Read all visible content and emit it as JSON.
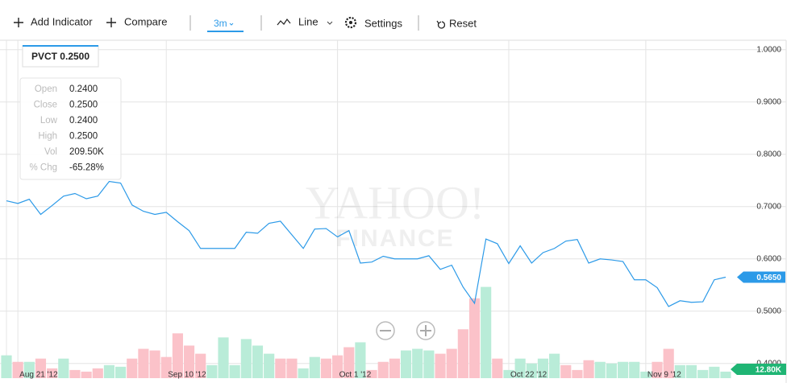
{
  "toolbar": {
    "add_indicator": "Add Indicator",
    "compare": "Compare",
    "range": "3m",
    "chart_style": "Line",
    "settings": "Settings",
    "reset": "Reset"
  },
  "watermark": [
    "YAHOO!",
    "FINANCE"
  ],
  "quote_box": {
    "symbol_price": "PVCT 0.2500",
    "rows": [
      [
        "Open",
        "0.2400"
      ],
      [
        "Close",
        "0.2500"
      ],
      [
        "Low",
        "0.2400"
      ],
      [
        "High",
        "0.2500"
      ],
      [
        "Vol",
        "209.50K"
      ],
      [
        "% Chg",
        "-65.28%"
      ]
    ]
  },
  "chart_data": {
    "type": "line",
    "categories": [
      null,
      "Aug 21 '12",
      null,
      null,
      null,
      null,
      null,
      null,
      null,
      null,
      null,
      null,
      null,
      null,
      "Sep 10 '12",
      null,
      null,
      null,
      null,
      null,
      null,
      null,
      null,
      null,
      null,
      null,
      null,
      null,
      null,
      "Oct 1 '12",
      null,
      null,
      null,
      null,
      null,
      null,
      null,
      null,
      null,
      null,
      null,
      null,
      null,
      null,
      "Oct 22 '12",
      null,
      null,
      null,
      null,
      null,
      null,
      null,
      null,
      null,
      null,
      null,
      "Nov 9 '12",
      null,
      null,
      null,
      null,
      null,
      null,
      null
    ],
    "series": [
      {
        "name": "PVCT",
        "color": "#2c9ae8",
        "values": [
          0.711,
          0.706,
          0.714,
          0.685,
          0.702,
          0.72,
          0.725,
          0.715,
          0.72,
          0.748,
          0.745,
          0.703,
          0.691,
          0.685,
          0.689,
          0.671,
          0.654,
          0.62,
          0.62,
          0.62,
          0.62,
          0.651,
          0.649,
          0.668,
          0.672,
          0.646,
          0.62,
          0.657,
          0.658,
          0.642,
          0.654,
          0.592,
          0.594,
          0.605,
          0.6,
          0.6,
          0.6,
          0.606,
          0.58,
          0.588,
          0.546,
          0.515,
          0.638,
          0.629,
          0.591,
          0.625,
          0.592,
          0.612,
          0.62,
          0.634,
          0.637,
          0.592,
          0.6,
          0.598,
          0.595,
          0.56,
          0.56,
          0.545,
          0.509,
          0.52,
          0.517,
          0.518,
          0.56,
          0.565
        ]
      }
    ],
    "volume": {
      "values": [
        44.8,
        32,
        32,
        38.4,
        19.2,
        38.4,
        16,
        12.8,
        19.2,
        25.6,
        22.4,
        38.4,
        57.6,
        54.4,
        41.6,
        88,
        64,
        48,
        25.6,
        80,
        25.6,
        76.8,
        64,
        48,
        38.4,
        38.4,
        19.2,
        41.6,
        38.4,
        44.8,
        60.8,
        70.4,
        16,
        32,
        38.4,
        54.4,
        57.6,
        54.4,
        48,
        57.6,
        96,
        156.8,
        179.2,
        38.4,
        16,
        38.4,
        28.8,
        38.4,
        48,
        25.6,
        16,
        35.2,
        32,
        28.8,
        32,
        32,
        12.8,
        32,
        57.6,
        25.6,
        25.6,
        16,
        22.4,
        12.8
      ],
      "colors": [
        "#b9ecd8",
        "#fbc2c9",
        "#b9ecd8",
        "#fbc2c9",
        "#fbc2c9",
        "#b9ecd8",
        "#fbc2c9",
        "#fbc2c9",
        "#fbc2c9",
        "#b9ecd8",
        "#b9ecd8",
        "#fbc2c9",
        "#fbc2c9",
        "#fbc2c9",
        "#fbc2c9",
        "#fbc2c9",
        "#fbc2c9",
        "#fbc2c9",
        "#b9ecd8",
        "#b9ecd8",
        "#b9ecd8",
        "#b9ecd8",
        "#b9ecd8",
        "#b9ecd8",
        "#fbc2c9",
        "#fbc2c9",
        "#b9ecd8",
        "#b9ecd8",
        "#fbc2c9",
        "#fbc2c9",
        "#fbc2c9",
        "#b9ecd8",
        "#fbc2c9",
        "#fbc2c9",
        "#fbc2c9",
        "#b9ecd8",
        "#b9ecd8",
        "#b9ecd8",
        "#fbc2c9",
        "#fbc2c9",
        "#fbc2c9",
        "#fbc2c9",
        "#b9ecd8",
        "#fbc2c9",
        "#b9ecd8",
        "#b9ecd8",
        "#b9ecd8",
        "#b9ecd8",
        "#b9ecd8",
        "#fbc2c9",
        "#fbc2c9",
        "#fbc2c9",
        "#b9ecd8",
        "#b9ecd8",
        "#b9ecd8",
        "#b9ecd8",
        "#b9ecd8",
        "#fbc2c9",
        "#fbc2c9",
        "#b9ecd8",
        "#b9ecd8",
        "#b9ecd8",
        "#b9ecd8",
        "#b9ecd8"
      ]
    },
    "last_price": {
      "value": 0.565,
      "label": "0.5650"
    },
    "last_volume": {
      "value": 12.8,
      "label": "12.80K"
    },
    "ylim": [
      0.372,
      1.018
    ],
    "yticks": [
      {
        "value": 1,
        "label": "1.0000"
      },
      {
        "value": 0.9,
        "label": "0.9000"
      },
      {
        "value": 0.8,
        "label": "0.8000"
      },
      {
        "value": 0.7,
        "label": "0.7000"
      },
      {
        "value": 0.6,
        "label": "0.6000"
      },
      {
        "value": 0.5,
        "label": "0.5000"
      },
      {
        "value": 0.4,
        "label": "0.4000"
      }
    ],
    "grid": true
  }
}
